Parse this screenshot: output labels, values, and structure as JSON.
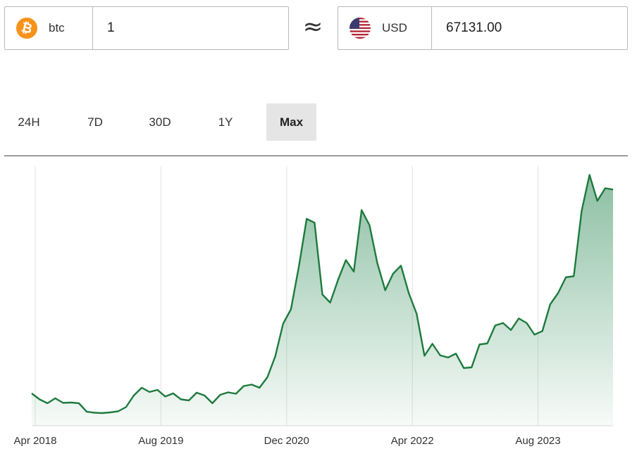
{
  "converter": {
    "from": {
      "code": "btc",
      "icon": "bitcoin-icon",
      "color": "#f7931a",
      "value": "1"
    },
    "approx_symbol": "≈",
    "to": {
      "code": "USD",
      "icon": "us-flag-icon",
      "value": "67131.00"
    }
  },
  "range_tabs": [
    {
      "label": "24H",
      "active": false
    },
    {
      "label": "7D",
      "active": false
    },
    {
      "label": "30D",
      "active": false
    },
    {
      "label": "1Y",
      "active": false
    },
    {
      "label": "Max",
      "active": true
    }
  ],
  "chart_data": {
    "type": "area",
    "x_ticks": [
      "Apr 2018",
      "Aug 2019",
      "Dec 2020",
      "Apr 2022",
      "Aug 2023"
    ],
    "x_range": [
      "2018-04",
      "2024-06"
    ],
    "ylim": [
      0,
      75000
    ],
    "grid": {
      "vertical": true,
      "horizontal": false
    },
    "line_color": "#1e7a3e",
    "fill_color": "#2e8b57",
    "series": [
      {
        "x": [
          "2018-04",
          "2018-05",
          "2018-06",
          "2018-07",
          "2018-08",
          "2018-09",
          "2018-10",
          "2018-11",
          "2018-12",
          "2019-01",
          "2019-02",
          "2019-03",
          "2019-04",
          "2019-05",
          "2019-06",
          "2019-07",
          "2019-08",
          "2019-09",
          "2019-10",
          "2019-11",
          "2019-12",
          "2020-01",
          "2020-02",
          "2020-03",
          "2020-04",
          "2020-05",
          "2020-06",
          "2020-07",
          "2020-08",
          "2020-09",
          "2020-10",
          "2020-11",
          "2020-12",
          "2021-01",
          "2021-02",
          "2021-03",
          "2021-04",
          "2021-05",
          "2021-06",
          "2021-07",
          "2021-08",
          "2021-09",
          "2021-10",
          "2021-11",
          "2021-12",
          "2022-01",
          "2022-02",
          "2022-03",
          "2022-04",
          "2022-05",
          "2022-06",
          "2022-07",
          "2022-08",
          "2022-09",
          "2022-10",
          "2022-11",
          "2022-12",
          "2023-01",
          "2023-02",
          "2023-03",
          "2023-04",
          "2023-05",
          "2023-06",
          "2023-07",
          "2023-08",
          "2023-09",
          "2023-10",
          "2023-11",
          "2023-12",
          "2024-01",
          "2024-02",
          "2024-03",
          "2024-04",
          "2024-05",
          "2024-06"
        ],
        "values": [
          9200,
          7500,
          6400,
          7800,
          6500,
          6600,
          6400,
          4000,
          3700,
          3600,
          3800,
          4100,
          5300,
          8600,
          10800,
          9600,
          10200,
          8300,
          9200,
          7500,
          7200,
          9400,
          8600,
          6400,
          8800,
          9500,
          9100,
          11300,
          11700,
          10800,
          13800,
          19700,
          29000,
          33100,
          45200,
          58800,
          57700,
          37300,
          35000,
          41500,
          47100,
          43800,
          61300,
          57000,
          46200,
          38500,
          43200,
          45500,
          37700,
          31800,
          19900,
          23300,
          20000,
          19400,
          20500,
          16400,
          16600,
          23100,
          23400,
          28500,
          29200,
          27200,
          30500,
          29200,
          25900,
          26900,
          34500,
          37700,
          42200,
          42500,
          61000,
          71300,
          63900,
          67500,
          67131
        ]
      }
    ]
  }
}
